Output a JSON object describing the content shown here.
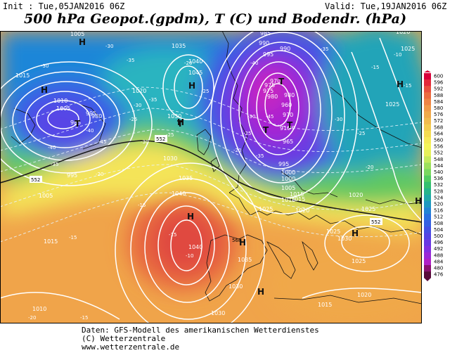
{
  "header": {
    "init_label": "Init : Tue,05JAN2016 06Z",
    "valid_label": "Valid: Tue,19JAN2016 06Z",
    "title": "500 hPa Geopot.(gpdm), T (C) und Bodendr. (hPa)"
  },
  "colorbar": {
    "levels": [
      "600",
      "596",
      "592",
      "588",
      "584",
      "580",
      "576",
      "572",
      "568",
      "564",
      "560",
      "556",
      "552",
      "548",
      "544",
      "540",
      "536",
      "532",
      "528",
      "524",
      "520",
      "516",
      "512",
      "508",
      "504",
      "500",
      "496",
      "492",
      "488",
      "484",
      "480",
      "476"
    ],
    "colors": [
      "#d8003a",
      "#e22a3a",
      "#e8503e",
      "#ec6c40",
      "#ee8444",
      "#f09a48",
      "#f0aa4a",
      "#f0bb4e",
      "#f2cc50",
      "#f4dc52",
      "#f6ea58",
      "#f4f45a",
      "#e6f05a",
      "#c4ea5c",
      "#9ce05c",
      "#7ad860",
      "#52cc62",
      "#34c070",
      "#26b48c",
      "#20a8a8",
      "#1e98c0",
      "#2284d4",
      "#2a70e0",
      "#3660e2",
      "#4450e4",
      "#5444e4",
      "#6838e2",
      "#8030e0",
      "#9a28d6",
      "#b020c6",
      "#8a1070",
      "#580a3a"
    ]
  },
  "map": {
    "pressure_labels": [
      "1005",
      "1015",
      "1035",
      "1040",
      "1045",
      "1020",
      "1010",
      "1005",
      "995",
      "995",
      "985",
      "980",
      "1030",
      "1030",
      "1035",
      "1040",
      "1040",
      "1035",
      "1030",
      "1030",
      "1020",
      "1015",
      "1010",
      "1005",
      "1015",
      "1025",
      "1025",
      "1020",
      "1015",
      "1025",
      "1020",
      "1025",
      "1000",
      "1015",
      "1005",
      "985",
      "990",
      "995",
      "990",
      "975",
      "970",
      "975",
      "980",
      "980",
      "960",
      "970",
      "910",
      "965",
      "995",
      "1000",
      "1015",
      "1020",
      "1025",
      "1030",
      "1025"
    ],
    "temp_labels": [
      "-30",
      "-35",
      "-30",
      "-25",
      "-20",
      "-25",
      "-30",
      "-35",
      "-40",
      "-45",
      "-40",
      "-35",
      "-30",
      "-25",
      "-20",
      "-15",
      "-15",
      "-10",
      "-15",
      "-20",
      "-25",
      "-30",
      "-35",
      "-40",
      "-45",
      "-40",
      "-35",
      "-30",
      "-25",
      "-20",
      "-15",
      "-10",
      "-15",
      "-20",
      "-15"
    ],
    "height_labels": [
      "552",
      "552",
      "552",
      "568"
    ],
    "high_marker": "H",
    "low_marker": "T"
  },
  "credits": {
    "line1": "Daten: GFS-Modell des amerikanischen Wetterdienstes",
    "line2": "(C) Wetterzentrale",
    "line3": "www.wetterzentrale.de"
  }
}
